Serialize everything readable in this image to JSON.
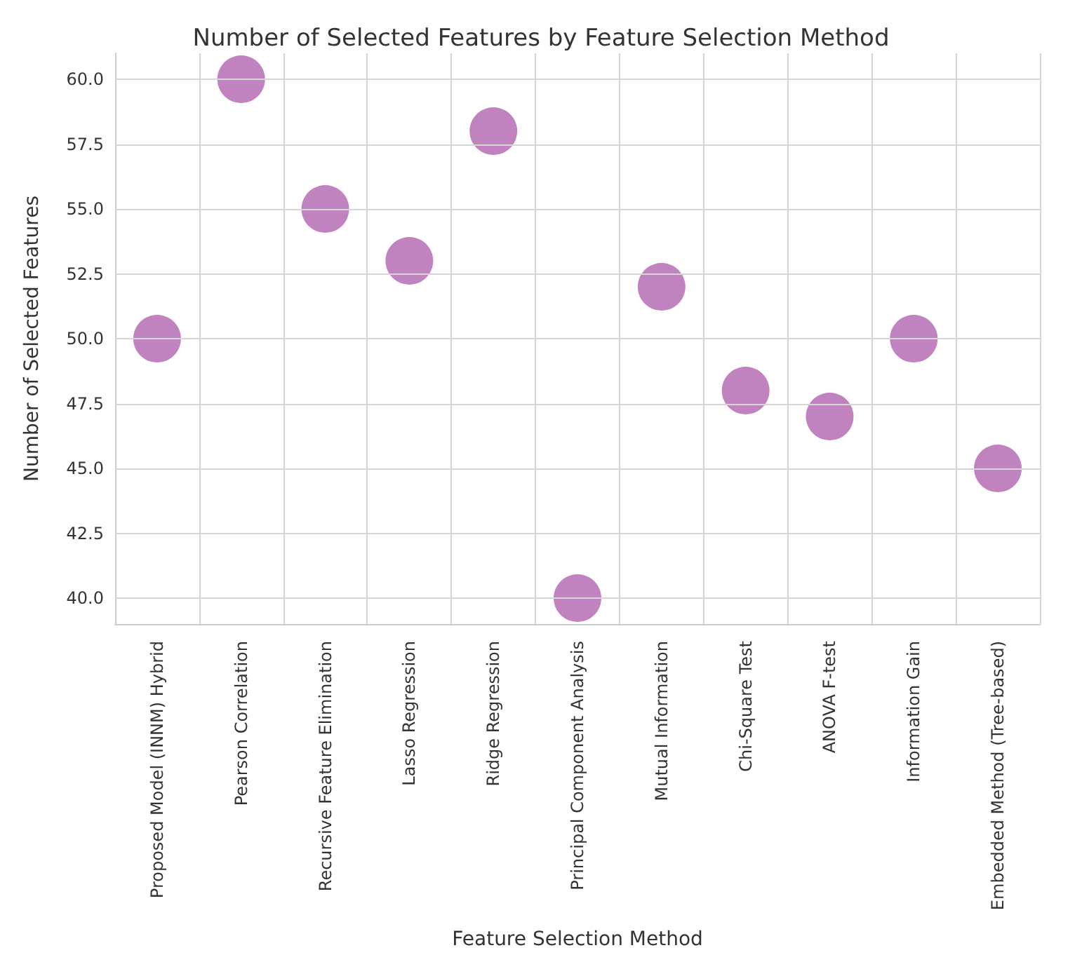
{
  "chart_data": {
    "type": "scatter",
    "title": "Number of Selected Features by Feature Selection Method",
    "xlabel": "Feature Selection Method",
    "ylabel": "Number of Selected Features",
    "categories": [
      "Proposed Model (INNM) Hybrid",
      "Pearson Correlation",
      "Recursive Feature Elimination",
      "Lasso Regression",
      "Ridge Regression",
      "Principal Component Analysis",
      "Mutual Information",
      "Chi-Square Test",
      "ANOVA F-test",
      "Information Gain",
      "Embedded Method (Tree-based)"
    ],
    "values": [
      50,
      60,
      55,
      53,
      58,
      40,
      52,
      48,
      47,
      50,
      45
    ],
    "color": "#b064b0",
    "ylim": [
      39,
      61
    ],
    "yticks": [
      {
        "value": 40,
        "label": "40.0"
      },
      {
        "value": 42.5,
        "label": "42.5"
      },
      {
        "value": 45,
        "label": "45.0"
      },
      {
        "value": 47.5,
        "label": "47.5"
      },
      {
        "value": 50,
        "label": "50.0"
      },
      {
        "value": 52.5,
        "label": "52.5"
      },
      {
        "value": 55,
        "label": "55.0"
      },
      {
        "value": 57.5,
        "label": "57.5"
      },
      {
        "value": 60,
        "label": "60.0"
      }
    ],
    "grid": true,
    "marker": "circle"
  }
}
